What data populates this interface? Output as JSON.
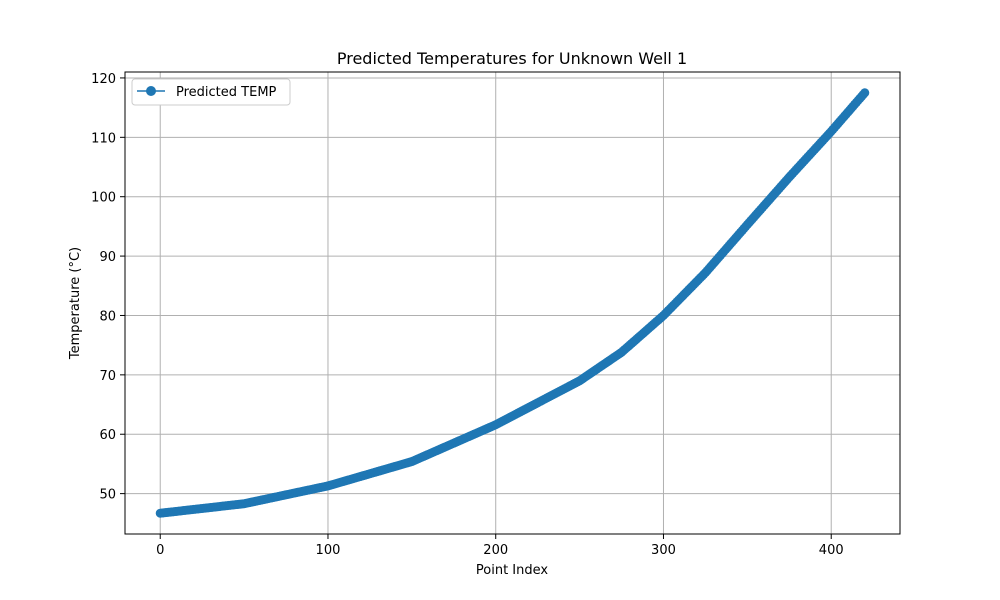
{
  "chart_data": {
    "type": "line",
    "title": "Predicted Temperatures for Unknown Well 1",
    "xlabel": "Point Index",
    "ylabel": "Temperature (°C)",
    "xlim": [
      -21,
      441
    ],
    "ylim": [
      43.2,
      121.0
    ],
    "xticks": [
      0,
      100,
      200,
      300,
      400
    ],
    "yticks": [
      50,
      60,
      70,
      80,
      90,
      100,
      110,
      120
    ],
    "grid": true,
    "legend_position": "top-left",
    "series": [
      {
        "name": "Predicted TEMP",
        "color": "#1f77b4",
        "marker": "circle",
        "x_start": 0,
        "x_end": 420,
        "control_points": [
          [
            0,
            46.7
          ],
          [
            50,
            48.3
          ],
          [
            100,
            51.3
          ],
          [
            150,
            55.4
          ],
          [
            200,
            61.6
          ],
          [
            250,
            69.0
          ],
          [
            275,
            73.8
          ],
          [
            300,
            80.0
          ],
          [
            325,
            87.2
          ],
          [
            350,
            95.3
          ],
          [
            375,
            103.3
          ],
          [
            400,
            111.0
          ],
          [
            420,
            117.5
          ]
        ]
      }
    ]
  }
}
